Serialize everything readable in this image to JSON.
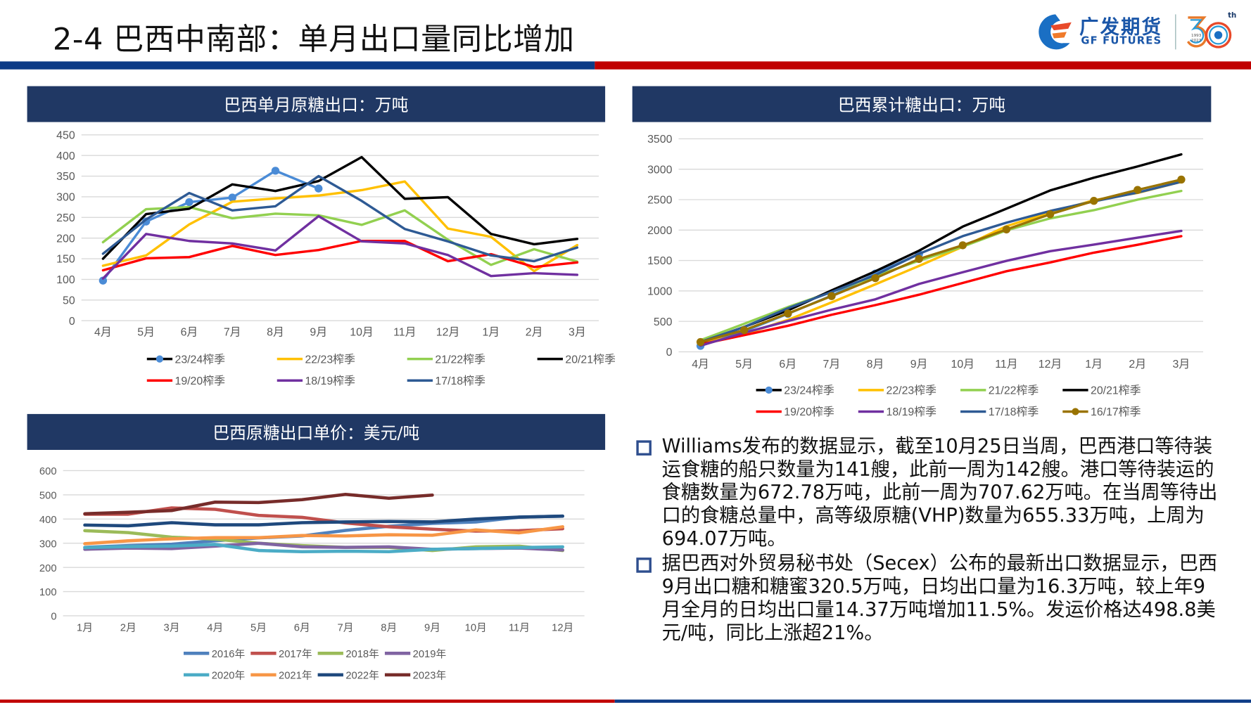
{
  "header": {
    "title": "2-4 巴西中南部：单月出口量同比增加",
    "logo_cn": "广发期货",
    "logo_en": "GF FUTURES",
    "anniversary": "30",
    "anniversary_sup": "th",
    "anniversary_years": [
      "1993",
      "2023"
    ],
    "colors": {
      "blue": "#0c3b86",
      "red": "#c00000",
      "panel": "#203864"
    }
  },
  "chart_data": [
    {
      "id": "monthly",
      "type": "line",
      "title": "巴西单月原糖出口：万吨",
      "xlabel": "",
      "ylabel": "",
      "categories": [
        "4月",
        "5月",
        "6月",
        "7月",
        "8月",
        "9月",
        "10月",
        "11月",
        "12月",
        "1月",
        "2月",
        "3月"
      ],
      "ylim": [
        0,
        450
      ],
      "yticks": [
        0,
        50,
        100,
        150,
        200,
        250,
        300,
        350,
        400,
        450
      ],
      "grid": true,
      "legend_position": "bottom",
      "series": [
        {
          "name": "23/24榨季",
          "color": "#4a8bd6",
          "marker": true,
          "values": [
            97,
            240,
            287,
            298,
            363,
            320,
            null,
            null,
            null,
            null,
            null,
            null
          ]
        },
        {
          "name": "22/23榨季",
          "color": "#ffc000",
          "values": [
            133,
            158,
            233,
            288,
            296,
            303,
            316,
            337,
            223,
            203,
            120,
            183
          ]
        },
        {
          "name": "21/22榨季",
          "color": "#92d050",
          "values": [
            190,
            270,
            275,
            248,
            259,
            255,
            232,
            267,
            196,
            135,
            173,
            143
          ]
        },
        {
          "name": "20/21榨季",
          "color": "#000000",
          "values": [
            150,
            258,
            271,
            330,
            314,
            338,
            396,
            295,
            299,
            210,
            185,
            198
          ]
        },
        {
          "name": "19/20榨季",
          "color": "#ff0000",
          "values": [
            122,
            151,
            154,
            181,
            159,
            171,
            193,
            193,
            144,
            161,
            130,
            141
          ]
        },
        {
          "name": "18/19榨季",
          "color": "#7030a0",
          "values": [
            102,
            210,
            193,
            187,
            170,
            253,
            192,
            187,
            159,
            108,
            115,
            111
          ]
        },
        {
          "name": "17/18榨季",
          "color": "#2e5a94",
          "values": [
            162,
            245,
            309,
            267,
            277,
            350,
            290,
            222,
            192,
            158,
            144,
            177
          ]
        }
      ]
    },
    {
      "id": "cumulative",
      "type": "line",
      "title": "巴西累计糖出口：万吨",
      "xlabel": "",
      "ylabel": "",
      "categories": [
        "4月",
        "5月",
        "6月",
        "7月",
        "8月",
        "9月",
        "10月",
        "11月",
        "12月",
        "1月",
        "2月",
        "3月"
      ],
      "ylim": [
        0,
        3500
      ],
      "yticks": [
        0,
        500,
        1000,
        1500,
        2000,
        2500,
        3000,
        3500
      ],
      "grid": true,
      "legend_position": "bottom",
      "series": [
        {
          "name": "23/24榨季",
          "color": "#4a8bd6",
          "marker": true,
          "values": [
            97,
            337,
            624,
            922,
            1285,
            1605,
            null,
            null,
            null,
            null,
            null,
            null
          ]
        },
        {
          "name": "22/23榨季",
          "color": "#ffc000",
          "values": [
            133,
            291,
            524,
            812,
            1108,
            1411,
            1727,
            2064,
            2287,
            2490,
            2610,
            2793
          ]
        },
        {
          "name": "21/22榨季",
          "color": "#92d050",
          "values": [
            190,
            460,
            735,
            983,
            1242,
            1497,
            1729,
            1996,
            2192,
            2327,
            2500,
            2643
          ]
        },
        {
          "name": "20/21榨季",
          "color": "#000000",
          "values": [
            150,
            408,
            679,
            1009,
            1323,
            1661,
            2057,
            2352,
            2651,
            2861,
            3046,
            3244
          ]
        },
        {
          "name": "19/20榨季",
          "color": "#ff0000",
          "values": [
            122,
            273,
            427,
            608,
            767,
            938,
            1131,
            1324,
            1468,
            1629,
            1759,
            1900
          ]
        },
        {
          "name": "18/19榨季",
          "color": "#7030a0",
          "values": [
            102,
            312,
            505,
            692,
            862,
            1115,
            1307,
            1494,
            1653,
            1761,
            1876,
            1987
          ]
        },
        {
          "name": "17/18榨季",
          "color": "#2e5a94",
          "values": [
            162,
            407,
            716,
            983,
            1260,
            1610,
            1900,
            2122,
            2314,
            2472,
            2616,
            2793
          ]
        },
        {
          "name": "16/17榨季",
          "color": "#997300",
          "marker": true,
          "values": [
            160,
            355,
            630,
            915,
            1210,
            1525,
            1750,
            2010,
            2260,
            2480,
            2660,
            2830
          ]
        }
      ]
    },
    {
      "id": "price",
      "type": "line",
      "title": "巴西原糖出口单价：美元/吨",
      "xlabel": "",
      "ylabel": "",
      "categories": [
        "1月",
        "2月",
        "3月",
        "4月",
        "5月",
        "6月",
        "7月",
        "8月",
        "9月",
        "10月",
        "11月",
        "12月"
      ],
      "ylim": [
        0,
        600
      ],
      "yticks": [
        0,
        100,
        200,
        300,
        400,
        500,
        600
      ],
      "grid": true,
      "legend_position": "bottom",
      "series": [
        {
          "name": "2016年",
          "color": "#4f81bd",
          "values": [
            283,
            290,
            296,
            310,
            322,
            330,
            353,
            370,
            382,
            388,
            408,
            412
          ]
        },
        {
          "name": "2017年",
          "color": "#c0504d",
          "values": [
            420,
            420,
            446,
            440,
            415,
            407,
            384,
            368,
            358,
            350,
            352,
            360
          ]
        },
        {
          "name": "2018年",
          "color": "#9bbb59",
          "values": [
            352,
            344,
            325,
            317,
            300,
            290,
            283,
            283,
            270,
            285,
            288,
            270
          ]
        },
        {
          "name": "2019年",
          "color": "#8064a2",
          "values": [
            275,
            280,
            278,
            288,
            300,
            285,
            283,
            285,
            275,
            278,
            280,
            272
          ]
        },
        {
          "name": "2020年",
          "color": "#4bacc6",
          "values": [
            282,
            286,
            288,
            295,
            270,
            265,
            267,
            265,
            275,
            278,
            282,
            285
          ]
        },
        {
          "name": "2021年",
          "color": "#f79646",
          "values": [
            298,
            310,
            318,
            323,
            323,
            332,
            330,
            335,
            333,
            355,
            343,
            368
          ]
        },
        {
          "name": "2022年",
          "color": "#1f497d",
          "values": [
            375,
            372,
            385,
            376,
            376,
            385,
            388,
            390,
            388,
            400,
            408,
            412
          ]
        },
        {
          "name": "2023年",
          "color": "#772c2a",
          "values": [
            422,
            428,
            435,
            470,
            468,
            480,
            502,
            486,
            499,
            null,
            null,
            null
          ]
        }
      ]
    }
  ],
  "bullets": [
    "Williams发布的数据显示，截至10月25日当周，巴西港口等待装运食糖的船只数量为141艘，此前一周为142艘。港口等待装运的食糖数量为672.78万吨，此前一周为707.62万吨。在当周等待出口的食糖总量中，高等级原糖(VHP)数量为655.33万吨，上周为694.07万吨。",
    "据巴西对外贸易秘书处（Secex）公布的最新出口数据显示，巴西9月出口糖和糖蜜320.5万吨，日均出口量为16.3万吨，较上年9月全月的日均出口量14.37万吨增加11.5%。发运价格达498.8美元/吨，同比上涨超21%。"
  ]
}
